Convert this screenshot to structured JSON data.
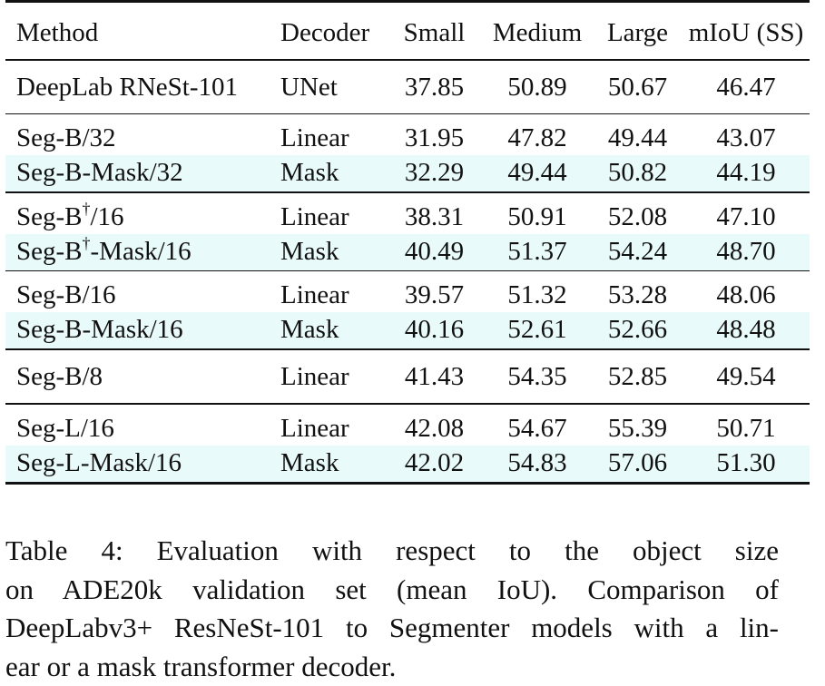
{
  "table": {
    "headers": {
      "method": "Method",
      "decoder": "Decoder",
      "small": "Small",
      "medium": "Medium",
      "large": "Large",
      "miou": "mIoU (SS)"
    },
    "groups": [
      {
        "rows": [
          {
            "method_pre": "DeepLab RNeSt-101",
            "dagger": "",
            "method_post": "",
            "decoder": "UNet",
            "small": "37.85",
            "medium": "50.89",
            "large": "50.67",
            "miou": "46.47",
            "highlight": false
          }
        ]
      },
      {
        "rows": [
          {
            "method_pre": "Seg-B/32",
            "dagger": "",
            "method_post": "",
            "decoder": "Linear",
            "small": "31.95",
            "medium": "47.82",
            "large": "49.44",
            "miou": "43.07",
            "highlight": false
          },
          {
            "method_pre": "Seg-B-Mask/32",
            "dagger": "",
            "method_post": "",
            "decoder": "Mask",
            "small": "32.29",
            "medium": "49.44",
            "large": "50.82",
            "miou": "44.19",
            "highlight": true
          }
        ]
      },
      {
        "rows": [
          {
            "method_pre": "Seg-B",
            "dagger": "†",
            "method_post": "/16",
            "decoder": "Linear",
            "small": "38.31",
            "medium": "50.91",
            "large": "52.08",
            "miou": "47.10",
            "highlight": false
          },
          {
            "method_pre": "Seg-B",
            "dagger": "†",
            "method_post": "-Mask/16",
            "decoder": "Mask",
            "small": "40.49",
            "medium": "51.37",
            "large": "54.24",
            "miou": "48.70",
            "highlight": true
          }
        ]
      },
      {
        "rows": [
          {
            "method_pre": "Seg-B/16",
            "dagger": "",
            "method_post": "",
            "decoder": "Linear",
            "small": "39.57",
            "medium": "51.32",
            "large": "53.28",
            "miou": "48.06",
            "highlight": false
          },
          {
            "method_pre": "Seg-B-Mask/16",
            "dagger": "",
            "method_post": "",
            "decoder": "Mask",
            "small": "40.16",
            "medium": "52.61",
            "large": "52.66",
            "miou": "48.48",
            "highlight": true
          }
        ]
      },
      {
        "rows": [
          {
            "method_pre": "Seg-B/8",
            "dagger": "",
            "method_post": "",
            "decoder": "Linear",
            "small": "41.43",
            "medium": "54.35",
            "large": "52.85",
            "miou": "49.54",
            "highlight": false
          }
        ]
      },
      {
        "rows": [
          {
            "method_pre": "Seg-L/16",
            "dagger": "",
            "method_post": "",
            "decoder": "Linear",
            "small": "42.08",
            "medium": "54.67",
            "large": "55.39",
            "miou": "50.71",
            "highlight": false
          },
          {
            "method_pre": "Seg-L-Mask/16",
            "dagger": "",
            "method_post": "",
            "decoder": "Mask",
            "small": "42.02",
            "medium": "54.83",
            "large": "57.06",
            "miou": "51.30",
            "highlight": true
          }
        ]
      }
    ]
  },
  "caption": {
    "lines": [
      "Table 4:  Evaluation with respect to the object size",
      "on ADE20k validation set (mean IoU). Comparison of",
      "DeepLabv3+ ResNeSt-101 to Segmenter models with a lin-",
      "ear or a mask transformer decoder."
    ]
  },
  "colors": {
    "highlight_row": "#e9fafa",
    "rule": "#111111",
    "text": "#111111"
  }
}
